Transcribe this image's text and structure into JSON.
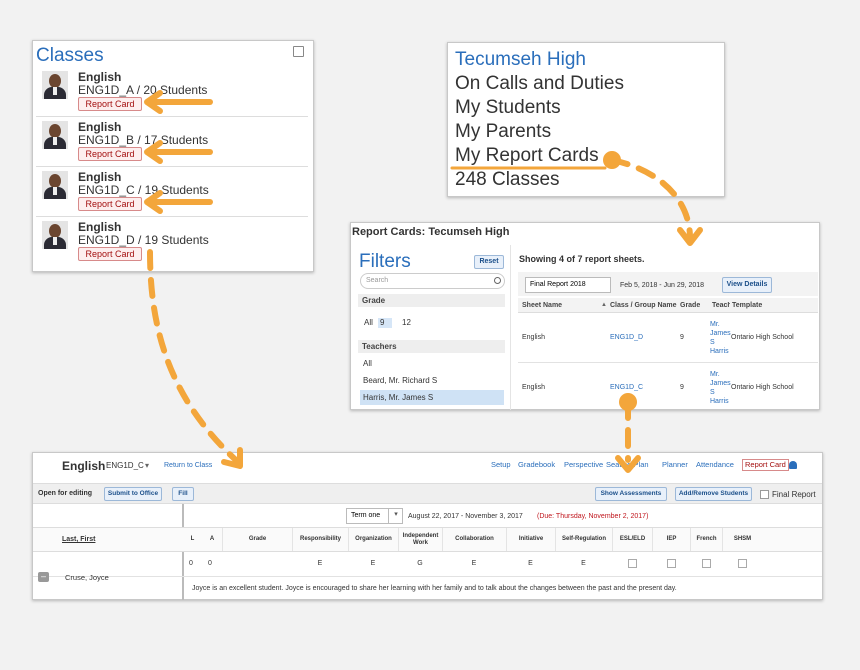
{
  "classes": {
    "title": "Classes",
    "items": [
      {
        "subject": "English",
        "section": "ENG1D_A / 20 Students",
        "button": "Report Card"
      },
      {
        "subject": "English",
        "section": "ENG1D_B / 17 Students",
        "button": "Report Card"
      },
      {
        "subject": "English",
        "section": "ENG1D_C / 19 Students",
        "button": "Report Card"
      },
      {
        "subject": "English",
        "section": "ENG1D_D / 19 Students",
        "button": "Report Card"
      }
    ]
  },
  "menu": {
    "title": "Tecumseh High",
    "items": [
      "On Calls and Duties",
      "My Students",
      "My Parents",
      "My Report Cards",
      "248 Classes"
    ]
  },
  "report_cards": {
    "title": "Report Cards: Tecumseh High",
    "filters": {
      "title": "Filters",
      "reset": "Reset",
      "search": "Search",
      "grade_label": "Grade",
      "grades": [
        "All",
        "9",
        "12"
      ],
      "teachers_label": "Teachers",
      "teachers": [
        "All",
        "Beard, Mr. Richard S",
        "Harris, Mr. James S"
      ]
    },
    "summary": "Showing 4 of 7 report sheets.",
    "period": "Final Report 2018",
    "dates": "Feb 5, 2018 - Jun 29, 2018",
    "view": "View Details",
    "columns": [
      "Sheet Name",
      "Class / Group Name",
      "Grade",
      "Teacher",
      "Template"
    ],
    "rows": [
      [
        "English",
        "ENG1D_D",
        "9",
        "Mr. James S Harris",
        "Ontario High School"
      ],
      [
        "English",
        "ENG1D_C",
        "9",
        "Mr. James S Harris",
        "Ontario High School"
      ]
    ]
  },
  "gradebook": {
    "course": "English",
    "section": "ENG1D_C",
    "back": "Return to Class",
    "nav": [
      "Setup",
      "Gradebook",
      "Perspective",
      "Seating Plan",
      "Planner",
      "Attendance",
      "Report Card"
    ],
    "status": "Open for editing",
    "submit": "Submit to Office",
    "fill": "Fill",
    "show": "Show Assessments",
    "add_remove": "Add/Remove Students",
    "final": "Final Report",
    "term": "Term one",
    "term_dates": "August 22, 2017 - November 3, 2017",
    "due": "(Due: Thursday, November 2, 2017)",
    "name_header": "Last, First",
    "columns": [
      "L",
      "A",
      "Grade",
      "Responsibility",
      "Organization",
      "Independent Work",
      "Collaboration",
      "Initiative",
      "Self-Regulation",
      "ESL/ELD",
      "IEP",
      "French",
      "SHSM"
    ],
    "student": "Cruse, Joyce",
    "values": [
      "0",
      "0",
      null,
      "E",
      "E",
      "G",
      "E",
      "E",
      "E"
    ],
    "comment": "Joyce is an excellent student. Joyce is encouraged to share her learning with her family and to talk about the changes between the past and the present day."
  }
}
